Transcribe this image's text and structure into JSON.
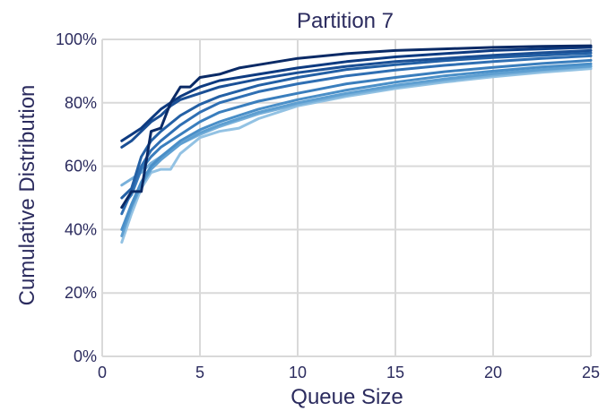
{
  "chart_data": {
    "type": "line",
    "title": "Partition 7",
    "xlabel": "Queue Size",
    "ylabel": "Cumulative Distribution",
    "xlim": [
      0,
      25
    ],
    "ylim": [
      0,
      100
    ],
    "x_ticks": [
      0,
      5,
      10,
      15,
      20,
      25
    ],
    "y_ticks": [
      0,
      20,
      40,
      60,
      80,
      100
    ],
    "y_tick_labels": [
      "0%",
      "20%",
      "40%",
      "60%",
      "80%",
      "100%"
    ],
    "grid": true,
    "legend": "none",
    "colors": [
      "#0a2a66",
      "#0d3a80",
      "#1a4f95",
      "#2360a5",
      "#2f6fb3",
      "#3a7ebd",
      "#4a8fc8",
      "#5e9fd1",
      "#78b0da",
      "#93c2e3"
    ],
    "series": [
      {
        "x": [
          1,
          1.5,
          2,
          2.5,
          3,
          3.5,
          4,
          4.5,
          5,
          6,
          7,
          8,
          10,
          12.5,
          15,
          17.5,
          20,
          22.5,
          25
        ],
        "values": [
          47,
          52,
          52,
          71,
          72,
          80,
          85,
          85,
          88,
          89,
          91,
          92,
          94,
          95.5,
          96.5,
          97,
          97.5,
          97.8,
          98
        ]
      },
      {
        "x": [
          1,
          1.5,
          2,
          2.5,
          3,
          3.5,
          4,
          5,
          6,
          8,
          10,
          12.5,
          15,
          17.5,
          20,
          22.5,
          25
        ],
        "values": [
          68,
          70,
          72,
          75,
          78,
          80,
          82,
          85,
          87,
          89,
          91,
          93,
          94.5,
          95.5,
          96.5,
          97,
          97.5
        ]
      },
      {
        "x": [
          1,
          1.5,
          2,
          2.5,
          3,
          3.5,
          4,
          5,
          6,
          8,
          10,
          12.5,
          15,
          17.5,
          20,
          22.5,
          25
        ],
        "values": [
          66,
          68,
          71,
          74,
          76,
          79,
          81,
          83,
          85,
          87.5,
          89.5,
          91.5,
          93,
          94,
          95,
          95.8,
          96.5
        ]
      },
      {
        "x": [
          1,
          1.5,
          2,
          2.5,
          3,
          4,
          5,
          6,
          8,
          10,
          12.5,
          15,
          17.5,
          20,
          22.5,
          25
        ],
        "values": [
          50,
          53,
          63,
          68,
          71,
          76,
          79.5,
          82,
          85.5,
          88,
          90.5,
          92,
          93.3,
          94.3,
          95,
          95.7
        ]
      },
      {
        "x": [
          1,
          1.5,
          2,
          2.5,
          3,
          4,
          5,
          6,
          8,
          10,
          12.5,
          15,
          17.5,
          20,
          22.5,
          25
        ],
        "values": [
          45,
          52,
          60,
          65,
          68,
          73,
          77,
          80,
          83.5,
          86,
          88.5,
          90.3,
          91.8,
          93,
          94,
          94.8
        ]
      },
      {
        "x": [
          1,
          1.5,
          2,
          2.5,
          3,
          4,
          5,
          6,
          8,
          10,
          12.5,
          15,
          17.5,
          20,
          22.5,
          25
        ],
        "values": [
          47,
          51,
          59,
          63,
          66,
          70,
          74,
          77,
          80.5,
          83,
          86,
          88,
          89.8,
          91.2,
          92.4,
          93.4
        ]
      },
      {
        "x": [
          1,
          1.5,
          2,
          2.5,
          3,
          4,
          5,
          6,
          8,
          10,
          12.5,
          15,
          17.5,
          20,
          22.5,
          25
        ],
        "values": [
          40,
          48,
          55,
          60,
          63,
          68,
          71.5,
          74,
          78,
          81,
          84,
          86.5,
          88.5,
          90,
          91.3,
          92.3
        ]
      },
      {
        "x": [
          1,
          1.5,
          2,
          2.5,
          3,
          4,
          5,
          6,
          8,
          10,
          12.5,
          15,
          17.5,
          20,
          22.5,
          25
        ],
        "values": [
          38,
          47,
          54,
          59,
          62,
          67,
          70.5,
          73,
          77,
          80,
          83,
          85.5,
          87.5,
          89.2,
          90.5,
          91.6
        ]
      },
      {
        "x": [
          1,
          1.5,
          2,
          2.5,
          3,
          4,
          5,
          6,
          8,
          10,
          12.5,
          15,
          17.5,
          20,
          22.5,
          25
        ],
        "values": [
          54,
          56,
          58,
          61,
          63,
          67,
          70,
          72.5,
          76.5,
          79.5,
          82.5,
          85,
          87,
          88.7,
          90.2,
          91.4
        ]
      },
      {
        "x": [
          1,
          1.5,
          2,
          2.5,
          3,
          3.5,
          4,
          5,
          6,
          7,
          8,
          10,
          12.5,
          15,
          17.5,
          20,
          22.5,
          25
        ],
        "values": [
          36,
          45,
          53,
          58,
          59,
          59,
          64,
          69,
          71,
          72,
          75,
          79,
          82,
          84.5,
          86.5,
          88.2,
          89.6,
          90.8
        ]
      }
    ]
  }
}
